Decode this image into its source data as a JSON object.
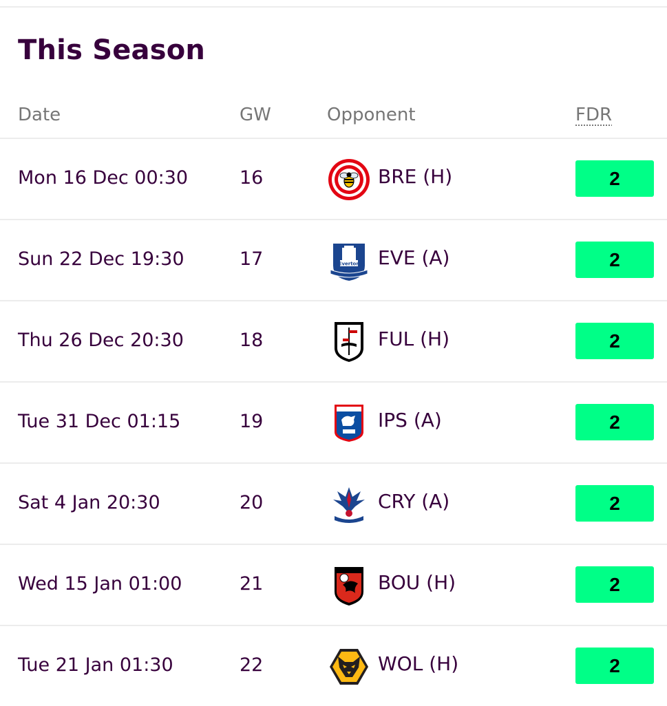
{
  "section": {
    "title": "This Season"
  },
  "table": {
    "headers": {
      "date": "Date",
      "gw": "GW",
      "opponent": "Opponent",
      "fdr": "FDR"
    },
    "rows": [
      {
        "date": "Mon 16 Dec 00:30",
        "gw": "16",
        "opponent": "BRE (H)",
        "crest": "brentford-crest-icon",
        "fdr": "2"
      },
      {
        "date": "Sun 22 Dec 19:30",
        "gw": "17",
        "opponent": "EVE (A)",
        "crest": "everton-crest-icon",
        "fdr": "2"
      },
      {
        "date": "Thu 26 Dec 20:30",
        "gw": "18",
        "opponent": "FUL (H)",
        "crest": "fulham-crest-icon",
        "fdr": "2"
      },
      {
        "date": "Tue 31 Dec 01:15",
        "gw": "19",
        "opponent": "IPS (A)",
        "crest": "ipswich-crest-icon",
        "fdr": "2"
      },
      {
        "date": "Sat 4 Jan 20:30",
        "gw": "20",
        "opponent": "CRY (A)",
        "crest": "crystal-palace-crest-icon",
        "fdr": "2"
      },
      {
        "date": "Wed 15 Jan 01:00",
        "gw": "21",
        "opponent": "BOU (H)",
        "crest": "bournemouth-crest-icon",
        "fdr": "2"
      },
      {
        "date": "Tue 21 Jan 01:30",
        "gw": "22",
        "opponent": "WOL (H)",
        "crest": "wolves-crest-icon",
        "fdr": "2"
      }
    ]
  },
  "colors": {
    "primary_text": "#37003c",
    "header_text": "#767676",
    "fdr_2": "#00ff87",
    "divider": "#ececec"
  }
}
